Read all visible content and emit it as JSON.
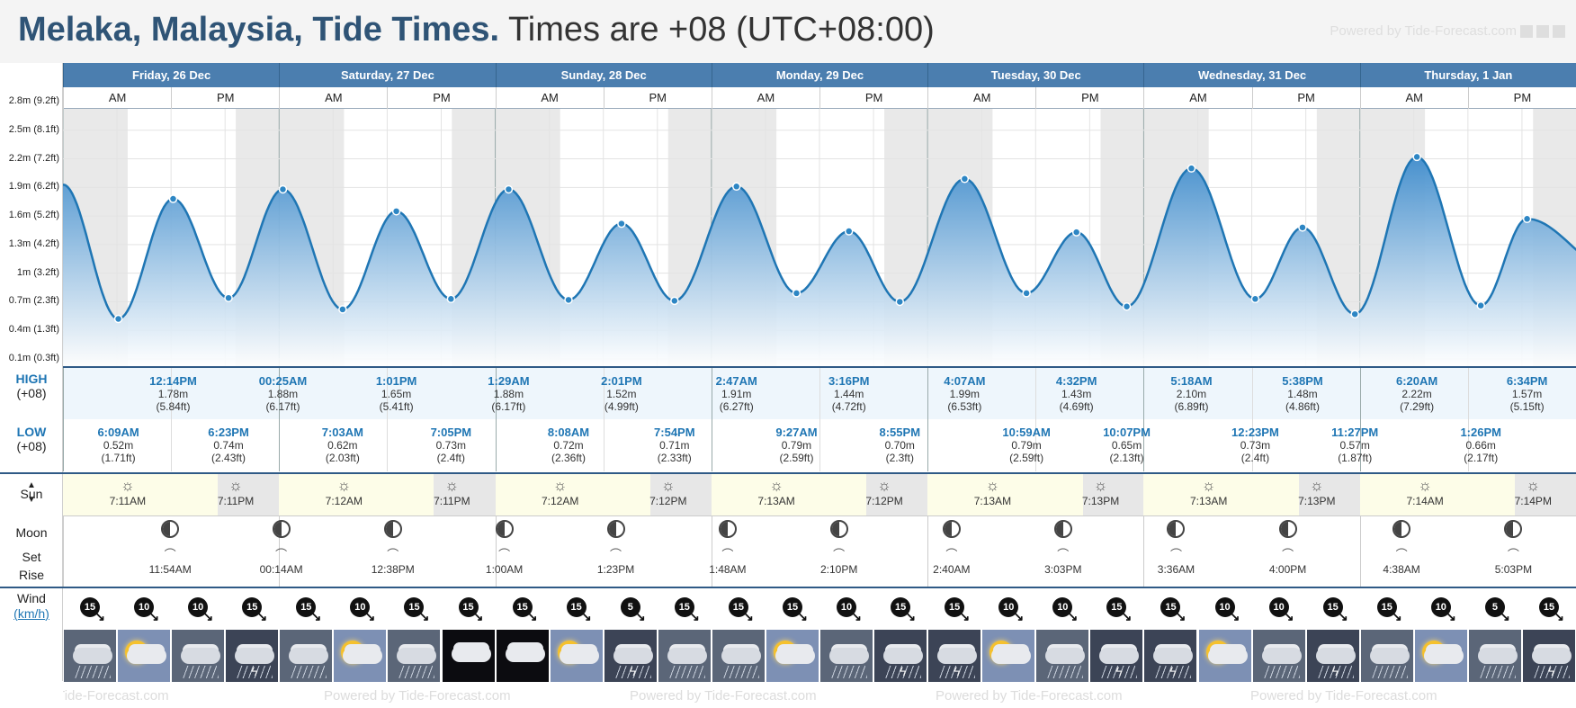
{
  "header": {
    "title_bold": "Melaka, Malaysia, Tide Times.",
    "title_rest": "Times are +08 (UTC+08:00)",
    "powered": "Powered by Tide-Forecast.com"
  },
  "days": [
    "Friday, 26 Dec",
    "Saturday, 27 Dec",
    "Sunday, 28 Dec",
    "Monday, 29 Dec",
    "Tuesday, 30 Dec",
    "Wednesday, 31 Dec",
    "Thursday, 1 Jan"
  ],
  "ampm": {
    "am": "AM",
    "pm": "PM"
  },
  "y_axis": [
    "2.8m (9.2ft)",
    "2.5m (8.1ft)",
    "2.2m (7.2ft)",
    "1.9m (6.2ft)",
    "1.6m (5.2ft)",
    "1.3m (4.2ft)",
    "1m (3.2ft)",
    "0.7m (2.3ft)",
    "0.4m (1.3ft)",
    "0.1m (0.3ft)"
  ],
  "labels": {
    "high": "HIGH",
    "high_tz": "(+08)",
    "low": "LOW",
    "low_tz": "(+08)",
    "sun": "Sun",
    "moon": "Moon",
    "set": "Set",
    "rise": "Rise",
    "wind": "Wind",
    "wind_unit": "km/h"
  },
  "highs": [
    {
      "day": 0,
      "time": "12:14PM",
      "m": "1.78m",
      "ft": "(5.84ft)"
    },
    {
      "day": 1,
      "time": "00:25AM",
      "m": "1.88m",
      "ft": "(6.17ft)"
    },
    {
      "day": 1,
      "time": "1:01PM",
      "m": "1.65m",
      "ft": "(5.41ft)"
    },
    {
      "day": 2,
      "time": "1:29AM",
      "m": "1.88m",
      "ft": "(6.17ft)"
    },
    {
      "day": 2,
      "time": "2:01PM",
      "m": "1.52m",
      "ft": "(4.99ft)"
    },
    {
      "day": 3,
      "time": "2:47AM",
      "m": "1.91m",
      "ft": "(6.27ft)"
    },
    {
      "day": 3,
      "time": "3:16PM",
      "m": "1.44m",
      "ft": "(4.72ft)"
    },
    {
      "day": 4,
      "time": "4:07AM",
      "m": "1.99m",
      "ft": "(6.53ft)"
    },
    {
      "day": 4,
      "time": "4:32PM",
      "m": "1.43m",
      "ft": "(4.69ft)"
    },
    {
      "day": 5,
      "time": "5:18AM",
      "m": "2.10m",
      "ft": "(6.89ft)"
    },
    {
      "day": 5,
      "time": "5:38PM",
      "m": "1.48m",
      "ft": "(4.86ft)"
    },
    {
      "day": 6,
      "time": "6:20AM",
      "m": "2.22m",
      "ft": "(7.29ft)"
    },
    {
      "day": 6,
      "time": "6:34PM",
      "m": "1.57m",
      "ft": "(5.15ft)"
    }
  ],
  "lows": [
    {
      "day": 0,
      "time": "6:09AM",
      "m": "0.52m",
      "ft": "(1.71ft)"
    },
    {
      "day": 0,
      "time": "6:23PM",
      "m": "0.74m",
      "ft": "(2.43ft)"
    },
    {
      "day": 1,
      "time": "7:03AM",
      "m": "0.62m",
      "ft": "(2.03ft)"
    },
    {
      "day": 1,
      "time": "7:05PM",
      "m": "0.73m",
      "ft": "(2.4ft)"
    },
    {
      "day": 2,
      "time": "8:08AM",
      "m": "0.72m",
      "ft": "(2.36ft)"
    },
    {
      "day": 2,
      "time": "7:54PM",
      "m": "0.71m",
      "ft": "(2.33ft)"
    },
    {
      "day": 3,
      "time": "9:27AM",
      "m": "0.79m",
      "ft": "(2.59ft)"
    },
    {
      "day": 3,
      "time": "8:55PM",
      "m": "0.70m",
      "ft": "(2.3ft)"
    },
    {
      "day": 4,
      "time": "10:59AM",
      "m": "0.79m",
      "ft": "(2.59ft)"
    },
    {
      "day": 4,
      "time": "10:07PM",
      "m": "0.65m",
      "ft": "(2.13ft)"
    },
    {
      "day": 5,
      "time": "12:23PM",
      "m": "0.73m",
      "ft": "(2.4ft)"
    },
    {
      "day": 5,
      "time": "11:27PM",
      "m": "0.57m",
      "ft": "(1.87ft)"
    },
    {
      "day": 6,
      "time": "1:26PM",
      "m": "0.66m",
      "ft": "(2.17ft)"
    }
  ],
  "sun": [
    {
      "day": 0,
      "rise": "7:11AM",
      "set": "7:11PM"
    },
    {
      "day": 1,
      "rise": "7:12AM",
      "set": "7:11PM"
    },
    {
      "day": 2,
      "rise": "7:12AM",
      "set": "7:12PM"
    },
    {
      "day": 3,
      "rise": "7:13AM",
      "set": "7:12PM"
    },
    {
      "day": 4,
      "rise": "7:13AM",
      "set": "7:13PM"
    },
    {
      "day": 5,
      "rise": "7:13AM",
      "set": "7:13PM"
    },
    {
      "day": 6,
      "rise": "7:14AM",
      "set": "7:14PM"
    }
  ],
  "moon": [
    {
      "day": 0,
      "events": [
        "11:54AM"
      ]
    },
    {
      "day": 1,
      "events": [
        "00:14AM",
        "12:38PM"
      ]
    },
    {
      "day": 2,
      "events": [
        "1:00AM",
        "1:23PM"
      ]
    },
    {
      "day": 3,
      "events": [
        "1:48AM",
        "2:10PM"
      ]
    },
    {
      "day": 4,
      "events": [
        "2:40AM",
        "3:03PM"
      ]
    },
    {
      "day": 5,
      "events": [
        "3:36AM",
        "4:00PM"
      ]
    },
    {
      "day": 6,
      "events": [
        "4:38AM",
        "5:03PM"
      ]
    }
  ],
  "wind": [
    "15",
    "10",
    "10",
    "15",
    "15",
    "10",
    "15",
    "15",
    "15",
    "15",
    "5",
    "15",
    "15",
    "15",
    "10",
    "15",
    "15",
    "10",
    "10",
    "15",
    "15",
    "10",
    "10",
    "15",
    "15",
    "10",
    "5",
    "15"
  ],
  "weather": [
    "rain",
    "sun-cloud",
    "rain",
    "storm",
    "rain",
    "sun-cloud",
    "rain",
    "cloud-night",
    "cloud-night",
    "sun-cloud",
    "storm",
    "rain",
    "rain",
    "sun-cloud",
    "rain",
    "storm",
    "storm",
    "sun-cloud",
    "rain",
    "storm",
    "storm",
    "sun-cloud",
    "rain",
    "storm",
    "rain",
    "sun-cloud",
    "rain",
    "storm"
  ],
  "colors": {
    "header_blue": "#4b7eaf",
    "tide_line": "#1f76b4",
    "tide_fill": "#3f8ccc",
    "title": "#2f5476"
  },
  "chart_data": {
    "type": "area",
    "series": [
      {
        "name": "Tide height (m)",
        "values": [
          1.93,
          0.52,
          1.78,
          0.74,
          1.88,
          0.62,
          1.65,
          0.73,
          1.88,
          0.72,
          1.52,
          0.71,
          1.91,
          0.79,
          1.44,
          0.7,
          1.99,
          0.79,
          1.43,
          0.65,
          2.1,
          0.73,
          1.48,
          0.57,
          2.22,
          0.66,
          1.57
        ]
      }
    ],
    "x": [
      "start",
      "6:09AM",
      "12:14PM",
      "6:23PM",
      "00:25AM",
      "7:03AM",
      "1:01PM",
      "7:05PM",
      "1:29AM",
      "8:08AM",
      "2:01PM",
      "7:54PM",
      "2:47AM",
      "9:27AM",
      "3:16PM",
      "8:55PM",
      "4:07AM",
      "10:59AM",
      "4:32PM",
      "10:07PM",
      "5:18AM",
      "12:23PM",
      "5:38PM",
      "11:27PM",
      "6:20AM",
      "1:26PM",
      "6:34PM"
    ],
    "ylim": [
      0.1,
      2.8
    ],
    "grid": true
  }
}
